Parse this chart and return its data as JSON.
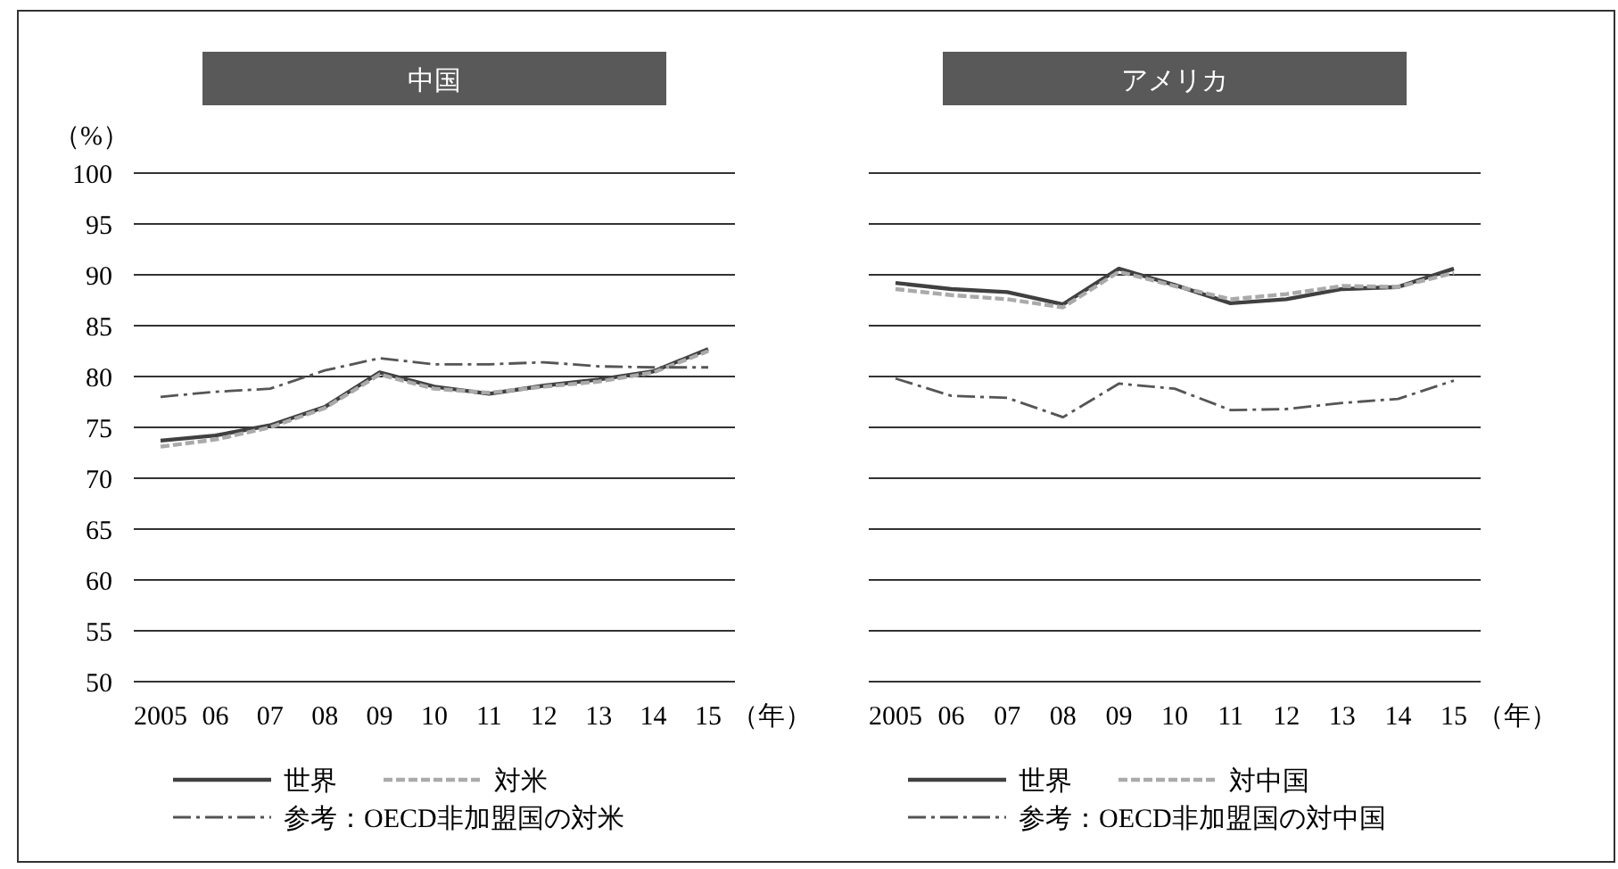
{
  "chart_data": [
    {
      "type": "line",
      "title": "中国",
      "ylabel": "（%）",
      "xlabel": "（年）",
      "categories": [
        "2005",
        "06",
        "07",
        "08",
        "09",
        "10",
        "11",
        "12",
        "13",
        "14",
        "15"
      ],
      "ylim": [
        50,
        100
      ],
      "yticks": [
        50,
        55,
        60,
        65,
        70,
        75,
        80,
        85,
        90,
        95,
        100
      ],
      "grid": "y",
      "legend": "bottom",
      "series": [
        {
          "name": "世界",
          "color": "#404040",
          "line_style": "solid",
          "values": [
            73.7,
            74.2,
            75.2,
            77,
            80.4,
            79,
            78.3,
            79.1,
            79.7,
            80.5,
            82.7
          ]
        },
        {
          "name": "対米",
          "color": "#aaaaaa",
          "line_style": "dashed",
          "values": [
            73.1,
            73.8,
            75,
            76.9,
            80.2,
            78.8,
            78.4,
            79,
            79.5,
            80.4,
            82.5
          ]
        },
        {
          "name": "参考：OECD非加盟国の対米",
          "color": "#555555",
          "line_style": "dashdot",
          "values": [
            78,
            78.5,
            78.8,
            80.6,
            81.8,
            81.2,
            81.2,
            81.4,
            81,
            80.9,
            80.9
          ]
        }
      ]
    },
    {
      "type": "line",
      "title": "アメリカ",
      "xlabel": "（年）",
      "categories": [
        "2005",
        "06",
        "07",
        "08",
        "09",
        "10",
        "11",
        "12",
        "13",
        "14",
        "15"
      ],
      "ylim": [
        50,
        100
      ],
      "yticks": [
        50,
        55,
        60,
        65,
        70,
        75,
        80,
        85,
        90,
        95,
        100
      ],
      "tick_labels": "x",
      "grid": "y",
      "legend": "bottom",
      "series": [
        {
          "name": "世界",
          "color": "#404040",
          "line_style": "solid",
          "values": [
            89.2,
            88.6,
            88.3,
            87.1,
            90.6,
            89,
            87.2,
            87.6,
            88.6,
            88.8,
            90.6
          ]
        },
        {
          "name": "対中国",
          "color": "#aaaaaa",
          "line_style": "dashed",
          "values": [
            88.6,
            88,
            87.6,
            86.8,
            90.3,
            88.9,
            87.6,
            88.1,
            88.9,
            88.8,
            90.2
          ]
        },
        {
          "name": "参考：OECD非加盟国の対中国",
          "color": "#555555",
          "line_style": "dashdot",
          "values": [
            79.8,
            78.1,
            77.9,
            76,
            79.3,
            78.8,
            76.7,
            76.8,
            77.4,
            77.8,
            79.6
          ]
        }
      ]
    }
  ]
}
